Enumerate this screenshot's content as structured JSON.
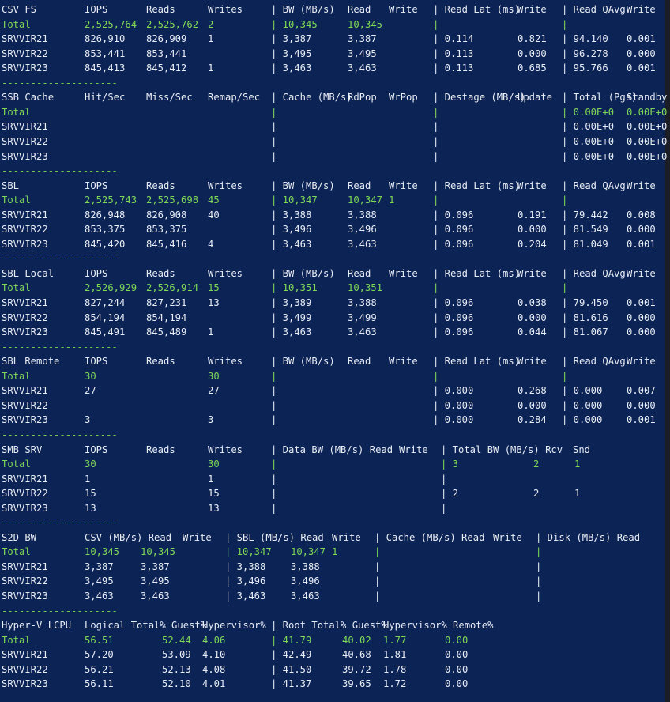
{
  "sections": [
    {
      "header": [
        "CSV FS",
        "IOPS",
        "Reads",
        "Writes",
        "| BW (MB/s)",
        "Read",
        "Write",
        "| Read Lat (ms)",
        "Write",
        "| Read QAvg",
        "Write"
      ],
      "rows": [
        [
          "Total",
          "2,525,764",
          "2,525,762",
          "2",
          "| 10,345",
          "10,345",
          "",
          "|",
          "",
          "|",
          ""
        ],
        [
          "SRVVIR21",
          "826,910",
          "826,909",
          "1",
          "| 3,387",
          "3,387",
          "",
          "| 0.114",
          "0.821",
          "| 94.140",
          "0.001"
        ],
        [
          "SRVVIR22",
          "853,441",
          "853,441",
          "",
          "| 3,495",
          "3,495",
          "",
          "| 0.113",
          "0.000",
          "| 96.278",
          "0.000"
        ],
        [
          "SRVVIR23",
          "845,413",
          "845,412",
          "1",
          "| 3,463",
          "3,463",
          "",
          "| 0.113",
          "0.685",
          "| 95.766",
          "0.001"
        ]
      ]
    },
    {
      "header": [
        "SSB Cache",
        "Hit/Sec",
        "Miss/Sec",
        "Remap/Sec",
        "| Cache (MB/s)",
        "RdPop",
        "WrPop",
        "| Destage (MB/s)",
        "Update",
        "| Total (Pgs)",
        "Standby"
      ],
      "rows": [
        [
          "Total",
          "",
          "",
          "",
          "|",
          "",
          "",
          "|",
          "",
          "| 0.00E+0",
          "0.00E+0"
        ],
        [
          "SRVVIR21",
          "",
          "",
          "",
          "|",
          "",
          "",
          "|",
          "",
          "| 0.00E+0",
          "0.00E+0"
        ],
        [
          "SRVVIR22",
          "",
          "",
          "",
          "|",
          "",
          "",
          "|",
          "",
          "| 0.00E+0",
          "0.00E+0"
        ],
        [
          "SRVVIR23",
          "",
          "",
          "",
          "|",
          "",
          "",
          "|",
          "",
          "| 0.00E+0",
          "0.00E+0"
        ]
      ]
    },
    {
      "header": [
        "SBL",
        "IOPS",
        "Reads",
        "Writes",
        "| BW (MB/s)",
        "Read",
        "Write",
        "| Read Lat (ms)",
        "Write",
        "| Read QAvg",
        "Write"
      ],
      "rows": [
        [
          "Total",
          "2,525,743",
          "2,525,698",
          "45",
          "| 10,347",
          "10,347",
          "1",
          "|",
          "",
          "|",
          ""
        ],
        [
          "SRVVIR21",
          "826,948",
          "826,908",
          "40",
          "| 3,388",
          "3,388",
          "",
          "| 0.096",
          "0.191",
          "| 79.442",
          "0.008"
        ],
        [
          "SRVVIR22",
          "853,375",
          "853,375",
          "",
          "| 3,496",
          "3,496",
          "",
          "| 0.096",
          "0.000",
          "| 81.549",
          "0.000"
        ],
        [
          "SRVVIR23",
          "845,420",
          "845,416",
          "4",
          "| 3,463",
          "3,463",
          "",
          "| 0.096",
          "0.204",
          "| 81.049",
          "0.001"
        ]
      ]
    },
    {
      "header": [
        "SBL Local",
        "IOPS",
        "Reads",
        "Writes",
        "| BW (MB/s)",
        "Read",
        "Write",
        "| Read Lat (ms)",
        "Write",
        "| Read QAvg",
        "Write"
      ],
      "rows": [
        [
          "Total",
          "2,526,929",
          "2,526,914",
          "15",
          "| 10,351",
          "10,351",
          "",
          "|",
          "",
          "|",
          ""
        ],
        [
          "SRVVIR21",
          "827,244",
          "827,231",
          "13",
          "| 3,389",
          "3,388",
          "",
          "| 0.096",
          "0.038",
          "| 79.450",
          "0.001"
        ],
        [
          "SRVVIR22",
          "854,194",
          "854,194",
          "",
          "| 3,499",
          "3,499",
          "",
          "| 0.096",
          "0.000",
          "| 81.616",
          "0.000"
        ],
        [
          "SRVVIR23",
          "845,491",
          "845,489",
          "1",
          "| 3,463",
          "3,463",
          "",
          "| 0.096",
          "0.044",
          "| 81.067",
          "0.000"
        ]
      ]
    },
    {
      "header": [
        "SBL Remote",
        "IOPS",
        "Reads",
        "Writes",
        "| BW (MB/s)",
        "Read",
        "Write",
        "| Read Lat (ms)",
        "Write",
        "| Read QAvg",
        "Write"
      ],
      "rows": [
        [
          "Total",
          "30",
          "",
          "30",
          "|",
          "",
          "",
          "|",
          "",
          "|",
          ""
        ],
        [
          "SRVVIR21",
          "27",
          "",
          "27",
          "|",
          "",
          "",
          "| 0.000",
          "0.268",
          "| 0.000",
          "0.007"
        ],
        [
          "SRVVIR22",
          "",
          "",
          "",
          "|",
          "",
          "",
          "| 0.000",
          "0.000",
          "| 0.000",
          "0.000"
        ],
        [
          "SRVVIR23",
          "3",
          "",
          "3",
          "|",
          "",
          "",
          "| 0.000",
          "0.284",
          "| 0.000",
          "0.001"
        ]
      ]
    },
    {
      "header": [
        "SMB SRV",
        "IOPS",
        "Reads",
        "Writes",
        "| Data BW (MB/s) Read",
        "Write",
        "| Total BW (MB/s) Rcv",
        "Snd"
      ],
      "rows": [
        [
          "Total",
          "30",
          "",
          "30",
          "|",
          "",
          "| 3",
          "2",
          "1"
        ],
        [
          "SRVVIR21",
          "1",
          "",
          "1",
          "|",
          "",
          "|",
          "",
          ""
        ],
        [
          "SRVVIR22",
          "15",
          "",
          "15",
          "|",
          "",
          "| 2",
          "2",
          "1"
        ],
        [
          "SRVVIR23",
          "13",
          "",
          "13",
          "|",
          "",
          "|",
          "",
          ""
        ]
      ]
    },
    {
      "header": [
        "S2D BW",
        "CSV (MB/s) Read",
        "Write",
        "| SBL (MB/s) Read",
        "Write",
        "| Cache (MB/s) Read",
        "Write",
        "| Disk (MB/s) Read"
      ],
      "rows": [
        [
          "Total",
          "10,345",
          "10,345",
          "",
          "| 10,347",
          "10,347",
          "1",
          "|",
          "",
          "|"
        ],
        [
          "SRVVIR21",
          "3,387",
          "3,387",
          "",
          "| 3,388",
          "3,388",
          "",
          "|",
          "",
          "|"
        ],
        [
          "SRVVIR22",
          "3,495",
          "3,495",
          "",
          "| 3,496",
          "3,496",
          "",
          "|",
          "",
          "|"
        ],
        [
          "SRVVIR23",
          "3,463",
          "3,463",
          "",
          "| 3,463",
          "3,463",
          "",
          "|",
          "",
          "|"
        ]
      ]
    },
    {
      "header": [
        "Hyper-V LCPU",
        "Logical Total% Guest%",
        "Hypervisor%",
        "| Root Total% Guest%",
        "Hypervisor% Remote%"
      ],
      "rows": [
        [
          "Total",
          "56.51",
          "52.44",
          "4.06",
          "| 41.79",
          "40.02",
          "1.77",
          "0.00"
        ],
        [
          "SRVVIR21",
          "57.20",
          "53.09",
          "4.10",
          "| 42.49",
          "40.68",
          "1.81",
          "0.00"
        ],
        [
          "SRVVIR22",
          "56.21",
          "52.13",
          "4.08",
          "| 41.50",
          "39.72",
          "1.78",
          "0.00"
        ],
        [
          "SRVVIR23",
          "56.11",
          "52.10",
          "4.01",
          "| 41.37",
          "39.65",
          "1.72",
          "0.00"
        ]
      ]
    }
  ],
  "separator": "--------------------"
}
